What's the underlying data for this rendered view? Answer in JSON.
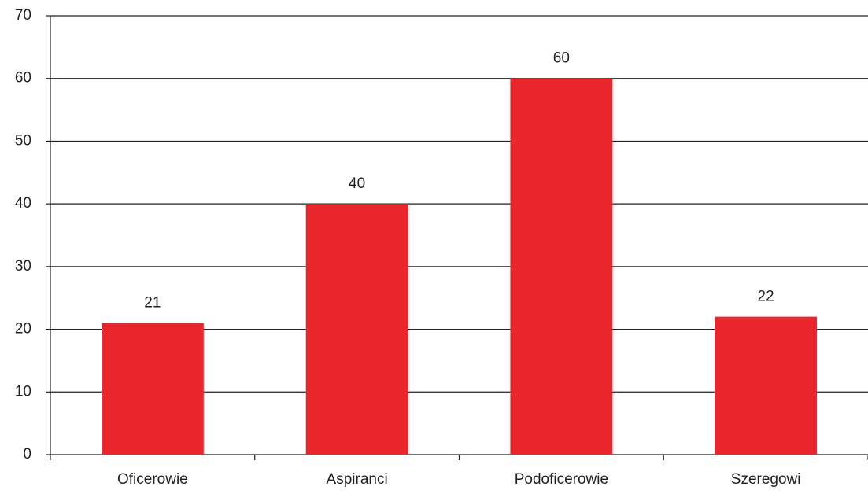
{
  "chart_data": {
    "type": "bar",
    "categories": [
      "Oficerowie",
      "Aspiranci",
      "Podoficerowie",
      "Szeregowi"
    ],
    "values": [
      21,
      40,
      60,
      22
    ],
    "color": "#e8262c",
    "ylim": [
      0,
      70
    ],
    "yticks": [
      0,
      10,
      20,
      30,
      40,
      50,
      60,
      70
    ],
    "grid": true
  }
}
